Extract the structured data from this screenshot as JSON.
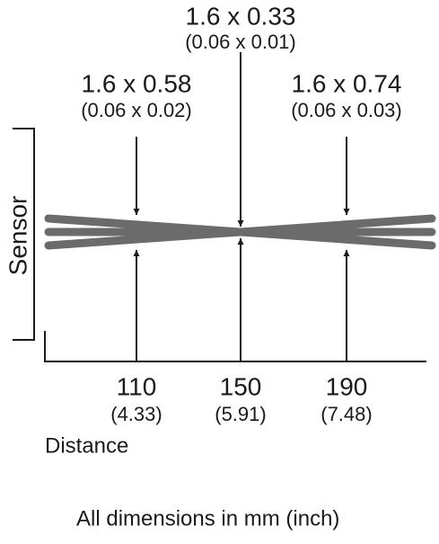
{
  "spots": [
    {
      "size_mm": "1.6 x 0.58",
      "size_inch": "(0.06 x 0.02)",
      "distance_mm": "110",
      "distance_inch": "(4.33)"
    },
    {
      "size_mm": "1.6 x 0.33",
      "size_inch": "(0.06 x 0.01)",
      "distance_mm": "150",
      "distance_inch": "(5.91)"
    },
    {
      "size_mm": "1.6 x 0.74",
      "size_inch": "(0.06 x 0.03)",
      "distance_mm": "190",
      "distance_inch": "(7.48)"
    }
  ],
  "sensor_label": "Sensor",
  "distance_label": "Distance",
  "footnote": "All dimensions in mm (inch)"
}
